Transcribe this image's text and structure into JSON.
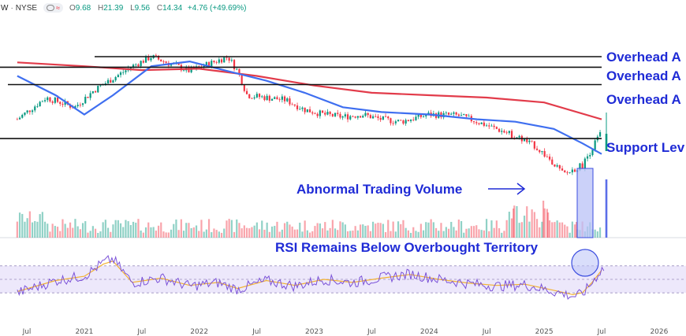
{
  "header": {
    "symbol": "W",
    "exchange": "NYSE",
    "open_label": "O",
    "open": "9.68",
    "high_label": "H",
    "high": "21.39",
    "low_label": "L",
    "low": "9.56",
    "close_label": "C",
    "close": "14.34",
    "change": "+4.76 (+49.69%)"
  },
  "annotations": {
    "resistance_1": "Overhead A",
    "resistance_2": "Overhead A",
    "resistance_3": "Overhead A",
    "support": "Support Lev",
    "volume_note": "Abnormal Trading Volume",
    "rsi_note": "RSI Remains Below Overbought Territory"
  },
  "colors": {
    "annotation": "#1f2bd6",
    "up": "#089981",
    "down": "#f23645",
    "ma_short": "#3f6ff0",
    "ma_long": "#e23b4a",
    "rsi_line": "#7b52d8",
    "rsi_signal": "#f2b233",
    "rsi_band": "#ede8fb"
  },
  "chart_data": {
    "type": "line",
    "price_series_note": "daily candlesticks",
    "x_axis_labels": [
      "Jul",
      "2021",
      "Jul",
      "2022",
      "Jul",
      "2023",
      "Jul",
      "2024",
      "Jul",
      "2025",
      "Jul",
      "2026"
    ],
    "price_path": [
      [
        "Jun 2020",
        190
      ],
      [
        "Sep 2020",
        235
      ],
      [
        "Dec 2020",
        215
      ],
      [
        "Feb 2021",
        250
      ],
      [
        "Apr 2021",
        275
      ],
      [
        "Jun 2021",
        300
      ],
      [
        "Aug 2021",
        320
      ],
      [
        "Oct 2021",
        305
      ],
      [
        "Dec 2021",
        290
      ],
      [
        "Feb 2022",
        305
      ],
      [
        "Apr 2022",
        320
      ],
      [
        "May 2022",
        290
      ],
      [
        "Jun 2022",
        240
      ],
      [
        "Aug 2022",
        235
      ],
      [
        "Oct 2022",
        230
      ],
      [
        "Dec 2022",
        210
      ],
      [
        "Feb 2023",
        200
      ],
      [
        "Apr 2023",
        195
      ],
      [
        "Jun 2023",
        200
      ],
      [
        "Aug 2023",
        190
      ],
      [
        "Oct 2023",
        185
      ],
      [
        "Jan 2024",
        200
      ],
      [
        "Apr 2024",
        198
      ],
      [
        "Jun 2024",
        185
      ],
      [
        "Aug 2024",
        170
      ],
      [
        "Oct 2024",
        155
      ],
      [
        "Dec 2024",
        135
      ],
      [
        "Feb 2025",
        100
      ],
      [
        "Mar 2025",
        75
      ],
      [
        "Apr 2025",
        85
      ],
      [
        "May 2025",
        95
      ],
      [
        "Jun 2025",
        130
      ],
      [
        "Jul 2025",
        165
      ]
    ],
    "short_ma_path": [
      [
        "Jun 2020",
        280
      ],
      [
        "Oct 2020",
        240
      ],
      [
        "Jan 2021",
        200
      ],
      [
        "Apr 2021",
        240
      ],
      [
        "Aug 2021",
        300
      ],
      [
        "Dec 2021",
        310
      ],
      [
        "Apr 2022",
        290
      ],
      [
        "Aug 2022",
        270
      ],
      [
        "Dec 2022",
        245
      ],
      [
        "Apr 2023",
        215
      ],
      [
        "Aug 2023",
        205
      ],
      [
        "Jan 2024",
        200
      ],
      [
        "Jun 2024",
        190
      ],
      [
        "Oct 2024",
        185
      ],
      [
        "Feb 2025",
        170
      ],
      [
        "May 2025",
        140
      ],
      [
        "Jul 2025",
        118
      ]
    ],
    "long_ma_path": [
      [
        "Jun 2020",
        308
      ],
      [
        "Jan 2021",
        300
      ],
      [
        "Jul 2021",
        292
      ],
      [
        "Jan 2022",
        295
      ],
      [
        "Jul 2022",
        280
      ],
      [
        "Jan 2023",
        260
      ],
      [
        "Jul 2023",
        245
      ],
      [
        "Jan 2024",
        240
      ],
      [
        "Jul 2024",
        235
      ],
      [
        "Jan 2025",
        225
      ],
      [
        "Jul 2025",
        190
      ]
    ],
    "horizontal_levels": [
      320,
      298,
      262,
      150
    ],
    "rsi": {
      "ylim": [
        0,
        100
      ],
      "bands": [
        30,
        70
      ],
      "path": [
        [
          "Jun 2020",
          30
        ],
        [
          "Oct 2020",
          48
        ],
        [
          "Jan 2021",
          55
        ],
        [
          "Mar 2021",
          75
        ],
        [
          "Apr 2021",
          80
        ],
        [
          "Jun 2021",
          45
        ],
        [
          "Sep 2021",
          52
        ],
        [
          "Dec 2021",
          40
        ],
        [
          "Mar 2022",
          45
        ],
        [
          "May 2022",
          35
        ],
        [
          "Aug 2022",
          48
        ],
        [
          "Nov 2022",
          40
        ],
        [
          "Feb 2023",
          50
        ],
        [
          "May 2023",
          45
        ],
        [
          "Aug 2023",
          52
        ],
        [
          "Nov 2023",
          58
        ],
        [
          "Feb 2024",
          50
        ],
        [
          "May 2024",
          44
        ],
        [
          "Aug 2024",
          40
        ],
        [
          "Nov 2024",
          42
        ],
        [
          "Feb 2025",
          32
        ],
        [
          "Apr 2025",
          25
        ],
        [
          "May 2025",
          28
        ],
        [
          "Jun 2025",
          45
        ],
        [
          "Jul 2025",
          65
        ]
      ]
    }
  }
}
